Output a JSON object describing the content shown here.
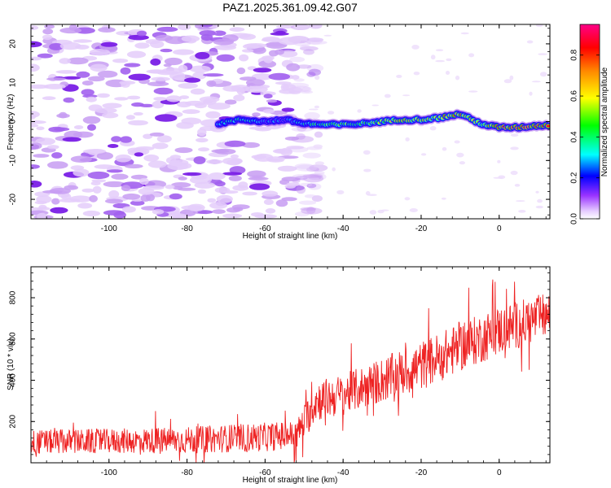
{
  "title": "PAZ1.2025.361.09.42.G07",
  "chart_data": [
    {
      "type": "heatmap",
      "name": "spectrogram",
      "xlabel": "Height of straight line (km)",
      "ylabel": "Frequency (Hz)",
      "xlim": [
        -120,
        13
      ],
      "ylim": [
        -25,
        25
      ],
      "xticks": [
        -100,
        -80,
        -60,
        -40,
        -20,
        0
      ],
      "yticks": [
        -20,
        -10,
        0,
        10,
        20
      ],
      "signal_track": {
        "x": [
          -72,
          -66,
          -60,
          -55,
          -50,
          -45,
          -40,
          -35,
          -30,
          -25,
          -20,
          -15,
          -10,
          -6,
          -3,
          0,
          5,
          10,
          13
        ],
        "freq": [
          -0.5,
          0.5,
          0,
          0.5,
          -0.5,
          -0.8,
          -0.8,
          -0.5,
          0,
          0.5,
          0.5,
          1.0,
          2.0,
          0,
          -1.0,
          -1.5,
          -1.5,
          -1.0,
          -1.0
        ],
        "amplitude": [
          0.35,
          0.4,
          0.3,
          0.3,
          0.4,
          0.5,
          0.55,
          0.5,
          0.6,
          0.7,
          0.65,
          0.75,
          0.8,
          0.6,
          0.7,
          0.85,
          0.9,
          0.9,
          0.9
        ]
      },
      "noise_region_x": [
        -120,
        -48
      ],
      "colorbar": {
        "label": "Normalized spectral amplitude",
        "range": [
          0,
          0.95
        ],
        "ticks": [
          "0.0",
          "0.2",
          "0.4",
          "0.6",
          "0.8"
        ]
      }
    },
    {
      "type": "line",
      "name": "snr",
      "xlabel": "Height of straight line (km)",
      "ylabel": "SNR (10 * v/v)",
      "xlim": [
        -120,
        13
      ],
      "ylim": [
        0,
        950
      ],
      "xticks": [
        -100,
        -80,
        -60,
        -40,
        -20,
        0
      ],
      "yticks": [
        200,
        400,
        600,
        800
      ],
      "series": [
        {
          "name": "SNR",
          "color": "#ee2222",
          "trend_x": [
            -120,
            -100,
            -80,
            -60,
            -52,
            -49,
            -47,
            -40,
            -30,
            -20,
            -10,
            0,
            13
          ],
          "trend_y": [
            100,
            105,
            110,
            125,
            135,
            230,
            300,
            330,
            400,
            470,
            560,
            640,
            720
          ],
          "noise_amplitude": [
            60,
            60,
            65,
            70,
            70,
            90,
            100,
            100,
            110,
            120,
            120,
            120,
            110
          ]
        }
      ]
    }
  ]
}
